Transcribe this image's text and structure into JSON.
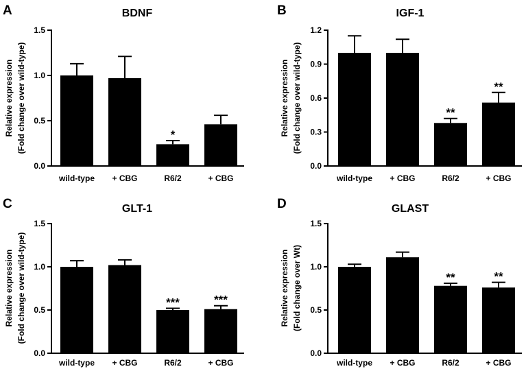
{
  "chart_data": [
    {
      "type": "bar",
      "panel": "A",
      "title": "BDNF",
      "ylabel_lines": [
        "Relative expression",
        "(Fold change over wild-type)"
      ],
      "categories": [
        "wild-type",
        "+ CBG",
        "R6/2",
        "+ CBG"
      ],
      "values": [
        1.0,
        0.97,
        0.24,
        0.46
      ],
      "errors": [
        0.13,
        0.24,
        0.04,
        0.1
      ],
      "significance": [
        "",
        "",
        "*",
        ""
      ],
      "ylim": [
        0,
        1.5
      ],
      "yticks": [
        "0.0",
        "0.5",
        "1.0",
        "1.5"
      ],
      "bar_color": "#000000"
    },
    {
      "type": "bar",
      "panel": "B",
      "title": "IGF-1",
      "ylabel_lines": [
        "Relative expression",
        "(Fold change over wild-type)"
      ],
      "categories": [
        "wild-type",
        "+ CBG",
        "R6/2",
        "+ CBG"
      ],
      "values": [
        1.0,
        1.0,
        0.38,
        0.56
      ],
      "errors": [
        0.15,
        0.12,
        0.04,
        0.09
      ],
      "significance": [
        "",
        "",
        "**",
        "**"
      ],
      "ylim": [
        0,
        1.2
      ],
      "yticks": [
        "0.0",
        "0.3",
        "0.6",
        "0.9",
        "1.2"
      ],
      "bar_color": "#000000"
    },
    {
      "type": "bar",
      "panel": "C",
      "title": "GLT-1",
      "ylabel_lines": [
        "Relative expression",
        "(Fold change over wild-type)"
      ],
      "categories": [
        "wild-type",
        "+ CBG",
        "R6/2",
        "+ CBG"
      ],
      "values": [
        1.0,
        1.02,
        0.5,
        0.51
      ],
      "errors": [
        0.07,
        0.06,
        0.02,
        0.04
      ],
      "significance": [
        "",
        "",
        "***",
        "***"
      ],
      "ylim": [
        0,
        1.5
      ],
      "yticks": [
        "0.0",
        "0.5",
        "1.0",
        "1.5"
      ],
      "bar_color": "#000000"
    },
    {
      "type": "bar",
      "panel": "D",
      "title": "GLAST",
      "ylabel_lines": [
        "Relative expression",
        "(Fold change over Wt)"
      ],
      "categories": [
        "wild-type",
        "+ CBG",
        "R6/2",
        "+ CBG"
      ],
      "values": [
        1.0,
        1.11,
        0.78,
        0.76
      ],
      "errors": [
        0.03,
        0.06,
        0.03,
        0.06
      ],
      "significance": [
        "",
        "",
        "**",
        "**"
      ],
      "ylim": [
        0,
        1.5
      ],
      "yticks": [
        "0.0",
        "0.5",
        "1.0",
        "1.5"
      ],
      "bar_color": "#000000"
    }
  ]
}
